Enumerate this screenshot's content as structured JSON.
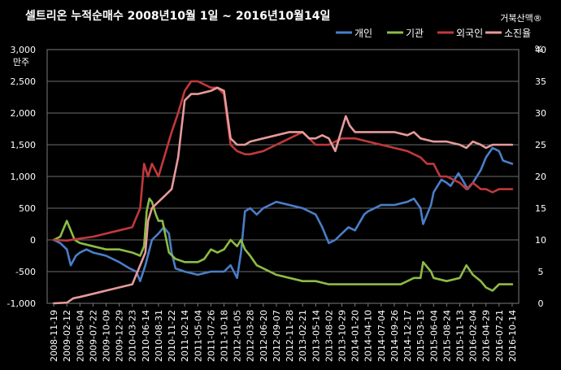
{
  "chart_data": {
    "type": "line",
    "title": "셀트리온  누적순매수  2008년10월 1일 ~ 2016년10월14일",
    "watermark": "거북산맥®",
    "y_left": {
      "unit_label": "만주",
      "lim": [
        -1000,
        3000
      ],
      "ticks": [
        "-1,000",
        "-500",
        "0",
        "500",
        "1,000",
        "1,500",
        "2,000",
        "2,500",
        "3,000"
      ]
    },
    "y_right": {
      "unit_label": "%",
      "lim": [
        0,
        40
      ],
      "ticks": [
        "0",
        "5",
        "10",
        "15",
        "20",
        "25",
        "30",
        "35",
        "40"
      ]
    },
    "x_tick_labels": [
      "2008-11-19",
      "2009-02-12",
      "2009-05-04",
      "2009-07-22",
      "2009-10-09",
      "2009-12-29",
      "2010-03-23",
      "2010-06-14",
      "2010-08-31",
      "2010-11-22",
      "2011-02-14",
      "2011-05-04",
      "2011-07-26",
      "2011-10-18",
      "2012-01-05",
      "2012-03-28",
      "2012-06-20",
      "2012-09-07",
      "2012-11-28",
      "2013-02-21",
      "2013-05-14",
      "2013-08-02",
      "2013-10-29",
      "2014-01-20",
      "2014-04-10",
      "2014-07-04",
      "2014-09-26",
      "2014-12-17",
      "2015-03-13",
      "2015-06-04",
      "2015-08-24",
      "2015-11-13",
      "2016-02-04",
      "2016-04-29",
      "2016-07-21",
      "2016-10-14"
    ],
    "grid": true,
    "legend_position": "top-right",
    "series": [
      {
        "name": "개인",
        "axis": "left",
        "color": "#4a7ec8",
        "values": [
          [
            0,
            0
          ],
          [
            0.5,
            -50
          ],
          [
            1,
            -150
          ],
          [
            1.3,
            -400
          ],
          [
            1.7,
            -250
          ],
          [
            2,
            -200
          ],
          [
            2.5,
            -150
          ],
          [
            3,
            -200
          ],
          [
            4,
            -250
          ],
          [
            5,
            -350
          ],
          [
            5.8,
            -450
          ],
          [
            6.3,
            -500
          ],
          [
            6.6,
            -650
          ],
          [
            7,
            -400
          ],
          [
            7.5,
            0
          ],
          [
            8,
            100
          ],
          [
            8.4,
            200
          ],
          [
            8.8,
            100
          ],
          [
            9,
            -200
          ],
          [
            9.3,
            -450
          ],
          [
            10,
            -500
          ],
          [
            11,
            -550
          ],
          [
            12,
            -500
          ],
          [
            13,
            -500
          ],
          [
            13.5,
            -400
          ],
          [
            14,
            -600
          ],
          [
            14.3,
            -200
          ],
          [
            14.6,
            450
          ],
          [
            15,
            500
          ],
          [
            15.5,
            400
          ],
          [
            16,
            500
          ],
          [
            17,
            600
          ],
          [
            18,
            550
          ],
          [
            19,
            500
          ],
          [
            20,
            400
          ],
          [
            20.5,
            200
          ],
          [
            21,
            -50
          ],
          [
            21.5,
            0
          ],
          [
            22,
            100
          ],
          [
            22.5,
            200
          ],
          [
            23,
            150
          ],
          [
            23.7,
            400
          ],
          [
            24,
            450
          ],
          [
            25,
            550
          ],
          [
            26,
            550
          ],
          [
            27,
            600
          ],
          [
            27.5,
            650
          ],
          [
            28,
            500
          ],
          [
            28.2,
            250
          ],
          [
            28.8,
            550
          ],
          [
            29,
            750
          ],
          [
            29.6,
            950
          ],
          [
            30,
            900
          ],
          [
            30.3,
            850
          ],
          [
            30.9,
            1050
          ],
          [
            31.2,
            950
          ],
          [
            31.6,
            800
          ],
          [
            32,
            900
          ],
          [
            32.6,
            1100
          ],
          [
            33,
            1300
          ],
          [
            33.5,
            1450
          ],
          [
            34,
            1400
          ],
          [
            34.3,
            1250
          ],
          [
            35,
            1200
          ]
        ]
      },
      {
        "name": "기관",
        "axis": "left",
        "color": "#8dbb46",
        "values": [
          [
            0,
            0
          ],
          [
            0.5,
            50
          ],
          [
            0.8,
            200
          ],
          [
            1,
            300
          ],
          [
            1.3,
            150
          ],
          [
            1.6,
            0
          ],
          [
            2,
            -50
          ],
          [
            3,
            -100
          ],
          [
            4,
            -150
          ],
          [
            5,
            -150
          ],
          [
            6,
            -200
          ],
          [
            6.6,
            -250
          ],
          [
            6.9,
            -100
          ],
          [
            7.1,
            450
          ],
          [
            7.3,
            650
          ],
          [
            7.5,
            600
          ],
          [
            7.8,
            400
          ],
          [
            8,
            300
          ],
          [
            8.3,
            300
          ],
          [
            8.5,
            100
          ],
          [
            8.8,
            -200
          ],
          [
            9.3,
            -300
          ],
          [
            10,
            -350
          ],
          [
            11,
            -350
          ],
          [
            11.5,
            -300
          ],
          [
            12,
            -150
          ],
          [
            12.5,
            -200
          ],
          [
            13,
            -150
          ],
          [
            13.5,
            0
          ],
          [
            14,
            -100
          ],
          [
            14.3,
            0
          ],
          [
            14.6,
            -150
          ],
          [
            15,
            -250
          ],
          [
            15.5,
            -400
          ],
          [
            16,
            -450
          ],
          [
            17,
            -550
          ],
          [
            18,
            -600
          ],
          [
            19,
            -650
          ],
          [
            20,
            -650
          ],
          [
            21,
            -700
          ],
          [
            22,
            -700
          ],
          [
            23,
            -700
          ],
          [
            24,
            -700
          ],
          [
            25,
            -700
          ],
          [
            26,
            -700
          ],
          [
            26.5,
            -700
          ],
          [
            27,
            -650
          ],
          [
            27.5,
            -600
          ],
          [
            28,
            -600
          ],
          [
            28.2,
            -350
          ],
          [
            28.8,
            -500
          ],
          [
            29,
            -600
          ],
          [
            30,
            -650
          ],
          [
            31,
            -600
          ],
          [
            31.5,
            -400
          ],
          [
            32,
            -550
          ],
          [
            32.6,
            -650
          ],
          [
            33,
            -750
          ],
          [
            33.5,
            -800
          ],
          [
            34,
            -700
          ],
          [
            35,
            -700
          ]
        ]
      },
      {
        "name": "외국인",
        "axis": "left",
        "color": "#c0393b",
        "values": [
          [
            0,
            0
          ],
          [
            1,
            -10
          ],
          [
            2,
            20
          ],
          [
            3,
            50
          ],
          [
            4,
            100
          ],
          [
            5,
            150
          ],
          [
            6,
            200
          ],
          [
            6.6,
            500
          ],
          [
            6.9,
            1200
          ],
          [
            7.2,
            1000
          ],
          [
            7.5,
            1200
          ],
          [
            8,
            1000
          ],
          [
            8.5,
            1350
          ],
          [
            9,
            1700
          ],
          [
            9.5,
            2000
          ],
          [
            10,
            2350
          ],
          [
            10.5,
            2500
          ],
          [
            11,
            2500
          ],
          [
            12,
            2400
          ],
          [
            12.5,
            2400
          ],
          [
            13,
            2300
          ],
          [
            13.5,
            1500
          ],
          [
            14,
            1400
          ],
          [
            14.6,
            1350
          ],
          [
            15,
            1350
          ],
          [
            16,
            1400
          ],
          [
            17,
            1500
          ],
          [
            18,
            1600
          ],
          [
            19,
            1700
          ],
          [
            19.5,
            1600
          ],
          [
            20,
            1500
          ],
          [
            21,
            1500
          ],
          [
            22,
            1600
          ],
          [
            23,
            1600
          ],
          [
            24,
            1550
          ],
          [
            25,
            1500
          ],
          [
            26,
            1450
          ],
          [
            27,
            1400
          ],
          [
            28,
            1300
          ],
          [
            28.5,
            1200
          ],
          [
            29,
            1200
          ],
          [
            29.5,
            1000
          ],
          [
            30,
            1000
          ],
          [
            31,
            900
          ],
          [
            31.5,
            800
          ],
          [
            32,
            900
          ],
          [
            32.6,
            800
          ],
          [
            33,
            800
          ],
          [
            33.5,
            750
          ],
          [
            34,
            800
          ],
          [
            35,
            800
          ]
        ]
      },
      {
        "name": "소진율",
        "axis": "right",
        "color": "#e79a9a",
        "values": [
          [
            0,
            0
          ],
          [
            1,
            0.1
          ],
          [
            1.5,
            0.8
          ],
          [
            2,
            1
          ],
          [
            3,
            1.5
          ],
          [
            4,
            2
          ],
          [
            5,
            2.5
          ],
          [
            6,
            3
          ],
          [
            6.6,
            6
          ],
          [
            7,
            8
          ],
          [
            7.2,
            13
          ],
          [
            7.5,
            15
          ],
          [
            8,
            16
          ],
          [
            8.5,
            17
          ],
          [
            9,
            18
          ],
          [
            9.5,
            23
          ],
          [
            10,
            32
          ],
          [
            10.5,
            33
          ],
          [
            11,
            33
          ],
          [
            12,
            33.5
          ],
          [
            12.5,
            34
          ],
          [
            13,
            33.5
          ],
          [
            13.5,
            26
          ],
          [
            14,
            25
          ],
          [
            14.6,
            25
          ],
          [
            15,
            25.5
          ],
          [
            16,
            26
          ],
          [
            17,
            26.5
          ],
          [
            18,
            27
          ],
          [
            19,
            27
          ],
          [
            19.5,
            26
          ],
          [
            20,
            26
          ],
          [
            20.5,
            26.5
          ],
          [
            21,
            26
          ],
          [
            21.5,
            24
          ],
          [
            22,
            27.5
          ],
          [
            22.3,
            29.5
          ],
          [
            22.6,
            28
          ],
          [
            23,
            27
          ],
          [
            24,
            27
          ],
          [
            25,
            27
          ],
          [
            26,
            27
          ],
          [
            27,
            26.5
          ],
          [
            27.5,
            27
          ],
          [
            28,
            26
          ],
          [
            29,
            25.5
          ],
          [
            30,
            25.5
          ],
          [
            31,
            25
          ],
          [
            31.5,
            24.5
          ],
          [
            32,
            25.5
          ],
          [
            32.6,
            25
          ],
          [
            33,
            24.5
          ],
          [
            33.5,
            25
          ],
          [
            34,
            25
          ],
          [
            35,
            25
          ]
        ]
      }
    ]
  }
}
